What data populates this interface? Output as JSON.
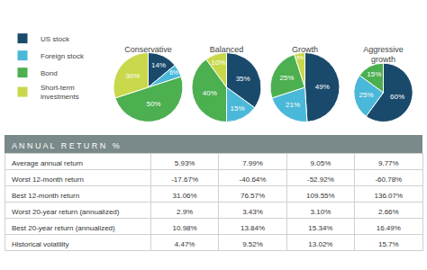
{
  "chart_data": [
    {
      "type": "pie",
      "title": "Conservative",
      "categories": [
        "US stock",
        "Foreign stock",
        "Bond",
        "Short-term\ninvestments"
      ],
      "values": [
        14,
        6,
        50,
        30
      ],
      "value_labels": [
        "14%",
        "6%",
        "50%",
        "30%"
      ],
      "colors": [
        "#1a4a6b",
        "#4ab8d8",
        "#4caf50",
        "#c8d84a"
      ],
      "data_labels": true,
      "legend": "upper left"
    },
    {
      "type": "pie",
      "title": "Balanced",
      "categories": [
        "US stock",
        "Foreign stock",
        "Bond",
        "Short-term\ninvestments"
      ],
      "values": [
        35,
        15,
        40,
        10
      ],
      "value_labels": [
        "35%",
        "15%",
        "40%",
        "10%"
      ],
      "colors": [
        "#1a4a6b",
        "#4ab8d8",
        "#4caf50",
        "#c8d84a"
      ],
      "data_labels": true,
      "legend": "upper left"
    },
    {
      "type": "pie",
      "title": "Growth",
      "categories": [
        "US stock",
        "Foreign stock",
        "Bond",
        "Short-term\ninvestments"
      ],
      "values": [
        49,
        21,
        25,
        5
      ],
      "value_labels": [
        "49%",
        "21%",
        "25%",
        "5%"
      ],
      "colors": [
        "#1a4a6b",
        "#4ab8d8",
        "#4caf50",
        "#c8d84a"
      ],
      "data_labels": true,
      "legend": "upper left"
    },
    {
      "type": "pie",
      "title": "Aggressive\ngrowth",
      "categories": [
        "US stock",
        "Foreign stock",
        "Bond"
      ],
      "values": [
        60,
        25,
        15
      ],
      "value_labels": [
        "60%",
        "25%",
        "15%"
      ],
      "colors": [
        "#1a4a6b",
        "#4ab8d8",
        "#4caf50"
      ],
      "data_labels": true,
      "legend": "upper left"
    },
    {
      "type": "table",
      "title": "A N N U A L   R E T U R N   %",
      "categories": [
        "Average annual return",
        "Worst 12-month return",
        "Best 12-month return",
        "Worst 20-year return (annualized)",
        "Best 20-year return (annualized)",
        "Historical volatility"
      ],
      "values": [
        [
          5.93,
          7.99,
          9.05,
          9.77
        ],
        [
          -17.67,
          -40.64,
          -52.92,
          -60.78
        ],
        [
          31.06,
          76.57,
          109.55,
          136.07
        ],
        [
          2.9,
          3.43,
          3.1,
          2.66
        ],
        [
          10.98,
          13.84,
          15.34,
          16.49
        ],
        [
          4.47,
          9.52,
          13.02,
          15.7
        ]
      ],
      "value_labels": [
        [
          "5.93%",
          "7.99%",
          "9.05%",
          "9.77%"
        ],
        [
          "-17.67%",
          "-40.64%",
          "-52.92%",
          "-60.78%"
        ],
        [
          "31.06%",
          "76.57%",
          "109.55%",
          "136.07%"
        ],
        [
          "2.9%",
          "3.43%",
          "3.10%",
          "2.66%"
        ],
        [
          "10.98%",
          "13.84%",
          "15.34%",
          "16.49%"
        ],
        [
          "4.47%",
          "9.52%",
          "13.02%",
          "15.7%"
        ]
      ],
      "color": "#7a8a8a"
    }
  ]
}
